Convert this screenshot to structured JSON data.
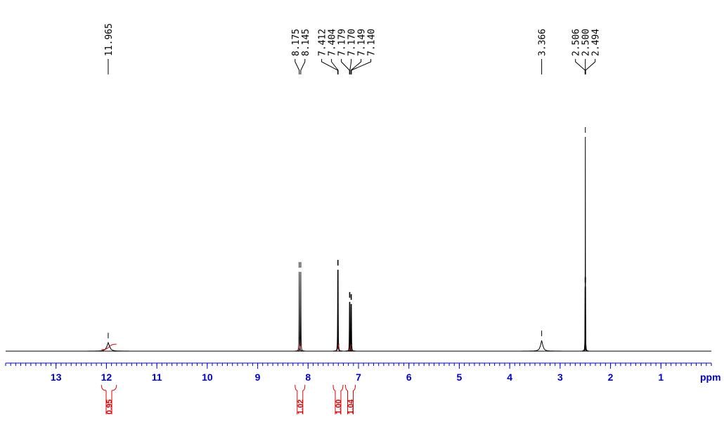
{
  "chart_data": {
    "type": "nmr",
    "xlim": [
      14,
      0
    ],
    "ylim": [
      0,
      100
    ],
    "xticks": [
      13,
      12,
      11,
      10,
      9,
      8,
      7,
      6,
      5,
      4,
      3,
      2,
      1
    ],
    "x_label": "ppm",
    "axis_color": "#0000cc",
    "line_color": "#000000",
    "integral_color": "#e00000",
    "peaks": [
      {
        "value": 11.965,
        "label": "11.965"
      },
      {
        "value": 8.175,
        "label": "8.175"
      },
      {
        "value": 8.145,
        "label": "8.145"
      },
      {
        "value": 7.412,
        "label": "7.412"
      },
      {
        "value": 7.404,
        "label": "7.404"
      },
      {
        "value": 7.179,
        "label": "7.179"
      },
      {
        "value": 7.17,
        "label": "7.170"
      },
      {
        "value": 7.149,
        "label": "7.149"
      },
      {
        "value": 7.14,
        "label": "7.140"
      },
      {
        "value": 3.366,
        "label": "3.366"
      },
      {
        "value": 2.506,
        "label": "2.506"
      },
      {
        "value": 2.5,
        "label": "2.500"
      },
      {
        "value": 2.494,
        "label": "2.494"
      }
    ],
    "peak_heights": [
      4,
      37,
      37,
      38,
      38,
      23,
      23,
      22,
      22,
      5,
      30,
      100,
      30
    ],
    "peak_widths": [
      0.06,
      0.006,
      0.006,
      0.006,
      0.006,
      0.006,
      0.006,
      0.006,
      0.006,
      0.05,
      0.004,
      0.004,
      0.004
    ],
    "integrals": {
      "ranges": [
        [
          12.1,
          11.8
        ],
        [
          8.2,
          8.12
        ],
        [
          7.43,
          7.38
        ],
        [
          7.2,
          7.12
        ]
      ],
      "values": [
        0.95,
        1.02,
        1,
        1.04
      ],
      "value_labels": [
        "0.95",
        "1.02",
        "1.00",
        "1.04"
      ]
    }
  }
}
